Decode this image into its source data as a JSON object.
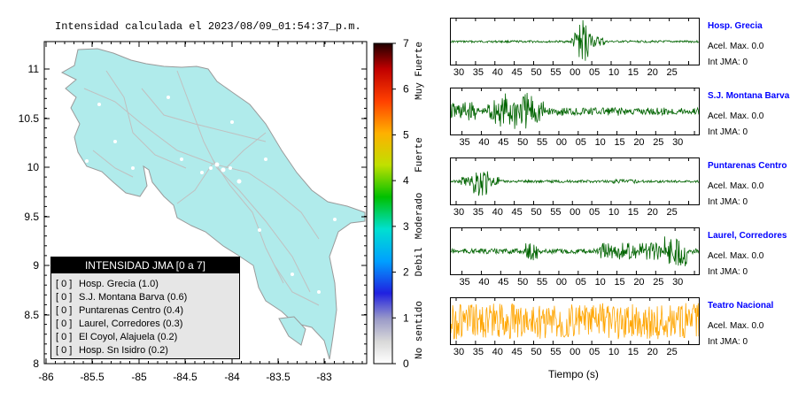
{
  "map": {
    "title": "Intensidad calculada el 2023/08/09_01:54:37_p.m.",
    "y_ticks": [
      "11",
      "10.5",
      "10",
      "9.5",
      "9",
      "8.5",
      "8"
    ],
    "x_ticks": [
      "-86",
      "-85.5",
      "-85",
      "-84.5",
      "-84",
      "-83.5",
      "-83"
    ]
  },
  "legend": {
    "title": "INTENSIDAD JMA [0 a 7]",
    "items": [
      {
        "level": "[ 0 ]",
        "label": "Hosp. Grecia (1.0)"
      },
      {
        "level": "[ 0 ]",
        "label": "S.J. Montana Barva (0.6)"
      },
      {
        "level": "[ 0 ]",
        "label": "Puntarenas Centro (0.4)"
      },
      {
        "level": "[ 0 ]",
        "label": "Laurel, Corredores (0.3)"
      },
      {
        "level": "[ 0 ]",
        "label": "El Coyol, Alajuela (0.2)"
      },
      {
        "level": "[ 0 ]",
        "label": "Hosp. Sn Isidro (0.2)"
      }
    ]
  },
  "colorbar": {
    "ticks": [
      "0",
      "1",
      "2",
      "3",
      "4",
      "5",
      "6",
      "7"
    ],
    "categories": [
      "No sentido",
      "Debil",
      "Moderado",
      "Fuerte",
      "Muy Fuerte"
    ]
  },
  "stations": [
    {
      "name": "Hosp. Grecia",
      "acel": "Acel. Max. 0.0",
      "int": "Int JMA: 0",
      "color": "#006400",
      "ticks": [
        "30",
        "35",
        "40",
        "45",
        "50",
        "55",
        "00",
        "05",
        "10",
        "15",
        "20",
        "25"
      ],
      "offset": 0,
      "pattern": "spike-mid"
    },
    {
      "name": "S.J. Montana Barva",
      "acel": "Acel. Max. 0.0",
      "int": "Int JMA: 0",
      "color": "#006400",
      "ticks": [
        "35",
        "40",
        "45",
        "50",
        "55",
        "00",
        "05",
        "10",
        "15",
        "20",
        "25",
        "30"
      ],
      "offset": 1,
      "pattern": "early-burst"
    },
    {
      "name": "Puntarenas Centro",
      "acel": "Acel. Max. 0.0",
      "int": "Int JMA: 0",
      "color": "#006400",
      "ticks": [
        "30",
        "35",
        "40",
        "45",
        "50",
        "55",
        "00",
        "05",
        "10",
        "15",
        "20",
        "25"
      ],
      "offset": 0,
      "pattern": "early-spike"
    },
    {
      "name": "Laurel, Corredores",
      "acel": "Acel. Max. 0.0",
      "int": "Int JMA: 0",
      "color": "#006400",
      "ticks": [
        "35",
        "40",
        "45",
        "50",
        "55",
        "00",
        "05",
        "10",
        "15",
        "20",
        "25",
        "30"
      ],
      "offset": 1,
      "pattern": "scattered"
    },
    {
      "name": "Teatro Nacional",
      "acel": "Acel. Max. 0.0",
      "int": "Int JMA: 0",
      "color": "#ffa500",
      "ticks": [
        "30",
        "35",
        "40",
        "45",
        "50",
        "55",
        "00",
        "05",
        "10",
        "15",
        "20",
        "25"
      ],
      "offset": 0,
      "pattern": "noise"
    }
  ],
  "time_axis_label": "Tiempo (s)"
}
